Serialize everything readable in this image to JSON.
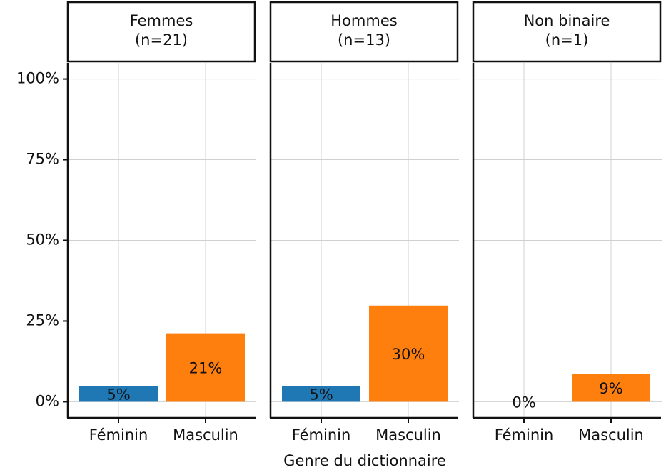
{
  "chart_data": [
    {
      "type": "bar",
      "title": [
        "Femmes",
        "(n=21)"
      ],
      "categories": [
        "Féminin",
        "Masculin"
      ],
      "values": [
        4.76,
        21.2
      ],
      "value_labels": [
        "5%",
        "21%"
      ],
      "colors": [
        "#1f77b4",
        "#ff7f0e"
      ],
      "ylim": [
        -5,
        105
      ],
      "yticks": [
        {
          "value": 0,
          "label": "0%"
        },
        {
          "value": 25,
          "label": "25%"
        },
        {
          "value": 50,
          "label": "50%"
        },
        {
          "value": 75,
          "label": "75%"
        },
        {
          "value": 100,
          "label": "100%"
        }
      ],
      "grid": true,
      "xlabel": "Genre du dictionnaire"
    },
    {
      "type": "bar",
      "title": [
        "Hommes",
        "(n=13)"
      ],
      "categories": [
        "Féminin",
        "Masculin"
      ],
      "values": [
        4.9,
        29.8
      ],
      "value_labels": [
        "5%",
        "30%"
      ],
      "colors": [
        "#1f77b4",
        "#ff7f0e"
      ],
      "ylim": [
        -5,
        105
      ],
      "grid": true
    },
    {
      "type": "bar",
      "title": [
        "Non binaire",
        "(n=1)"
      ],
      "categories": [
        "Féminin",
        "Masculin"
      ],
      "values": [
        0,
        8.6
      ],
      "value_labels": [
        "0%",
        "9%"
      ],
      "colors": [
        "#1f77b4",
        "#ff7f0e"
      ],
      "ylim": [
        -5,
        105
      ],
      "grid": true
    }
  ]
}
